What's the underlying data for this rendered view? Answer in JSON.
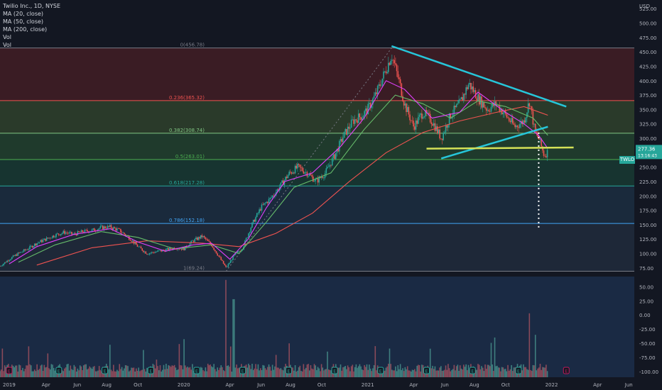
{
  "colors": {
    "background": "#131722",
    "fib_zone_0": "#3a1c24",
    "fib_zone_1": "#2a3a2a",
    "fib_zone_2": "#1f3a2c",
    "fib_zone_3": "#173430",
    "fib_zone_4": "#1a2a3c",
    "fib_zone_5": "#1e2838",
    "volume_pane": "#1a2a44",
    "ma20": "#e040fb",
    "ma50": "#66bb6a",
    "ma200": "#ef5350",
    "trendline": "#26c6da",
    "support_line": "#d4e157",
    "price_tag": "#26a69a",
    "up_candle": "#26a69a",
    "down_candle": "#ef5350"
  },
  "legend": {
    "title": "Twilio Inc., 1D, NYSE",
    "ma20": "MA (20, close)",
    "ma50": "MA (50, close)",
    "ma200": "MA (200, close)",
    "vol1": "Vol",
    "vol2": "Vol"
  },
  "chart_data": {
    "type": "candlestick",
    "title": "Twilio Inc., 1D, NYSE",
    "currency": "USD",
    "price_axis": {
      "ticks": [
        "525.00",
        "500.00",
        "475.00",
        "450.00",
        "425.00",
        "400.00",
        "375.00",
        "350.00",
        "325.00",
        "300.00",
        "275.00",
        "250.00",
        "225.00",
        "200.00",
        "175.00",
        "150.00",
        "125.00",
        "100.00",
        "75.00"
      ],
      "range": [
        60,
        540
      ]
    },
    "volume_axis": {
      "ticks": [
        "50.00",
        "25.00",
        "0.00",
        "-25.00",
        "-50.00",
        "-75.00",
        "-100.00"
      ],
      "range": [
        -110,
        68
      ]
    },
    "time_axis": [
      "2019",
      "Apr",
      "Jun",
      "Aug",
      "Oct",
      "2020",
      "Apr",
      "Jun",
      "Aug",
      "Oct",
      "2021",
      "Apr",
      "Jun",
      "Aug",
      "Oct",
      "2022",
      "Apr",
      "Jun"
    ],
    "current_price": {
      "symbol": "TWLO",
      "value": "277.36",
      "sub": "13:16:43"
    },
    "fibonacci": [
      {
        "ratio": "0",
        "price": 456.78,
        "label": "0(456.78)"
      },
      {
        "ratio": "0.236",
        "price": 365.32,
        "label": "0.236(365.32)"
      },
      {
        "ratio": "0.382",
        "price": 308.74,
        "label": "0.382(308.74)"
      },
      {
        "ratio": "0.5",
        "price": 263.01,
        "label": "0.5(263.01)"
      },
      {
        "ratio": "0.618",
        "price": 217.28,
        "label": "0.618(217.28)"
      },
      {
        "ratio": "0.786",
        "price": 152.18,
        "label": "0.786(152.18)"
      },
      {
        "ratio": "1",
        "price": 69.24,
        "label": "1(69.24)"
      }
    ],
    "events": [
      "E",
      "E",
      "E",
      "E",
      "E",
      "E",
      "E",
      "E",
      "E",
      "E",
      "E",
      "E",
      "E"
    ],
    "series": [
      {
        "name": "MA (20, close)"
      },
      {
        "name": "MA (50, close)"
      },
      {
        "name": "MA (200, close)"
      }
    ],
    "price_path": [
      [
        2019.0,
        78
      ],
      [
        2019.05,
        90
      ],
      [
        2019.1,
        100
      ],
      [
        2019.15,
        108
      ],
      [
        2019.2,
        118
      ],
      [
        2019.25,
        125
      ],
      [
        2019.3,
        132
      ],
      [
        2019.35,
        137
      ],
      [
        2019.4,
        133
      ],
      [
        2019.45,
        138
      ],
      [
        2019.5,
        140
      ],
      [
        2019.55,
        145
      ],
      [
        2019.6,
        146
      ],
      [
        2019.65,
        140
      ],
      [
        2019.7,
        128
      ],
      [
        2019.75,
        112
      ],
      [
        2019.8,
        100
      ],
      [
        2019.85,
        103
      ],
      [
        2019.9,
        106
      ],
      [
        2019.95,
        110
      ],
      [
        2020.0,
        108
      ],
      [
        2020.05,
        122
      ],
      [
        2020.1,
        130
      ],
      [
        2020.15,
        115
      ],
      [
        2020.2,
        90
      ],
      [
        2020.23,
        75
      ],
      [
        2020.27,
        95
      ],
      [
        2020.32,
        110
      ],
      [
        2020.37,
        150
      ],
      [
        2020.42,
        180
      ],
      [
        2020.47,
        195
      ],
      [
        2020.52,
        215
      ],
      [
        2020.57,
        238
      ],
      [
        2020.62,
        250
      ],
      [
        2020.67,
        240
      ],
      [
        2020.72,
        225
      ],
      [
        2020.77,
        240
      ],
      [
        2020.82,
        270
      ],
      [
        2020.87,
        305
      ],
      [
        2020.92,
        330
      ],
      [
        2020.97,
        340
      ],
      [
        2021.0,
        350
      ],
      [
        2021.05,
        380
      ],
      [
        2021.1,
        420
      ],
      [
        2021.13,
        445
      ],
      [
        2021.17,
        400
      ],
      [
        2021.2,
        360
      ],
      [
        2021.25,
        320
      ],
      [
        2021.3,
        345
      ],
      [
        2021.35,
        330
      ],
      [
        2021.4,
        300
      ],
      [
        2021.45,
        340
      ],
      [
        2021.5,
        360
      ],
      [
        2021.55,
        395
      ],
      [
        2021.6,
        370
      ],
      [
        2021.65,
        350
      ],
      [
        2021.7,
        360
      ],
      [
        2021.75,
        340
      ],
      [
        2021.8,
        320
      ],
      [
        2021.85,
        330
      ],
      [
        2021.88,
        365
      ],
      [
        2021.91,
        310
      ],
      [
        2021.93,
        300
      ],
      [
        2021.96,
        270
      ],
      [
        2021.98,
        277
      ]
    ],
    "ma20_path": [
      [
        2019.05,
        82
      ],
      [
        2019.2,
        112
      ],
      [
        2019.4,
        133
      ],
      [
        2019.6,
        143
      ],
      [
        2019.75,
        120
      ],
      [
        2019.9,
        104
      ],
      [
        2020.05,
        115
      ],
      [
        2020.15,
        118
      ],
      [
        2020.25,
        90
      ],
      [
        2020.35,
        125
      ],
      [
        2020.45,
        180
      ],
      [
        2020.55,
        225
      ],
      [
        2020.7,
        240
      ],
      [
        2020.85,
        285
      ],
      [
        2020.98,
        335
      ],
      [
        2021.1,
        400
      ],
      [
        2021.2,
        385
      ],
      [
        2021.35,
        335
      ],
      [
        2021.5,
        345
      ],
      [
        2021.6,
        380
      ],
      [
        2021.75,
        345
      ],
      [
        2021.85,
        325
      ],
      [
        2021.93,
        305
      ],
      [
        2021.98,
        282
      ]
    ],
    "ma50_path": [
      [
        2019.1,
        85
      ],
      [
        2019.3,
        115
      ],
      [
        2019.55,
        138
      ],
      [
        2019.75,
        128
      ],
      [
        2019.95,
        108
      ],
      [
        2020.15,
        115
      ],
      [
        2020.3,
        100
      ],
      [
        2020.45,
        155
      ],
      [
        2020.6,
        215
      ],
      [
        2020.8,
        240
      ],
      [
        2020.98,
        315
      ],
      [
        2021.15,
        375
      ],
      [
        2021.3,
        360
      ],
      [
        2021.45,
        335
      ],
      [
        2021.6,
        365
      ],
      [
        2021.75,
        355
      ],
      [
        2021.9,
        335
      ],
      [
        2021.98,
        305
      ]
    ],
    "ma200_path": [
      [
        2019.2,
        80
      ],
      [
        2019.5,
        110
      ],
      [
        2019.8,
        122
      ],
      [
        2020.1,
        118
      ],
      [
        2020.3,
        112
      ],
      [
        2020.5,
        135
      ],
      [
        2020.7,
        170
      ],
      [
        2020.9,
        225
      ],
      [
        2021.1,
        275
      ],
      [
        2021.3,
        310
      ],
      [
        2021.5,
        330
      ],
      [
        2021.7,
        345
      ],
      [
        2021.85,
        355
      ],
      [
        2021.98,
        340
      ]
    ],
    "trendlines": [
      {
        "from": [
          2021.13,
          460
        ],
        "to": [
          2022.08,
          355
        ]
      },
      {
        "from": [
          2021.4,
          265
        ],
        "to": [
          2021.98,
          320
        ]
      },
      {
        "from": [
          2021.32,
          282
        ],
        "to": [
          2022.12,
          284
        ]
      },
      {
        "from": [
          2021.93,
          310
        ],
        "to": [
          2021.93,
          145
        ]
      }
    ]
  }
}
